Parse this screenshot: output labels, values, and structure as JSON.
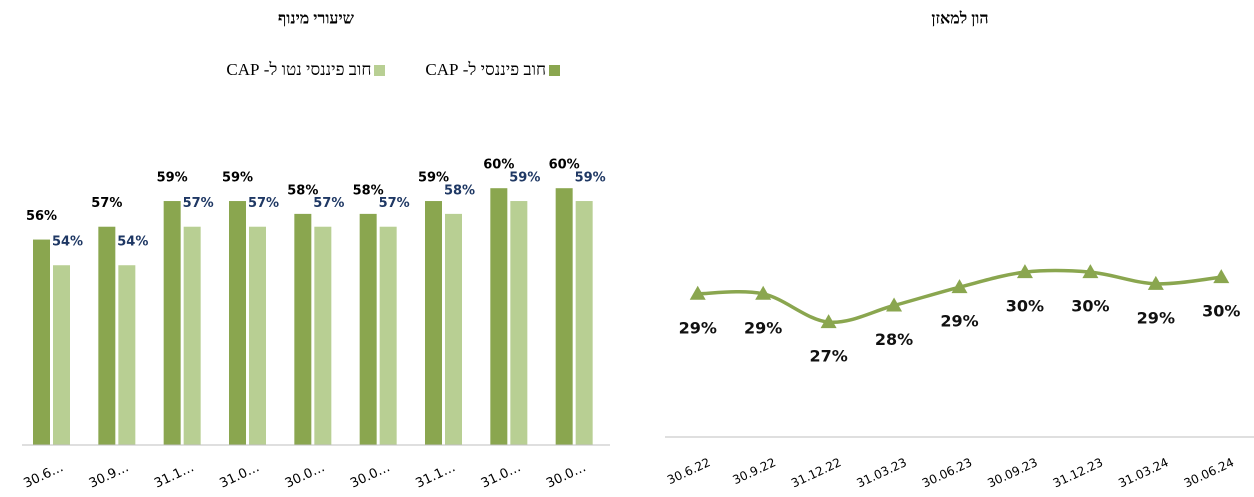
{
  "chart_data": [
    {
      "type": "bar",
      "title": "שיעורי מינוף",
      "categories": [
        "30.6…",
        "30.9…",
        "31.1…",
        "31.0…",
        "30.0…",
        "30.0…",
        "31.1…",
        "31.0…",
        "30.0…"
      ],
      "series": [
        {
          "name": "חוב פיננסי ל- CAP",
          "color": "#8aa64f",
          "label_color": "#000000",
          "values": [
            56,
            57,
            59,
            59,
            58,
            58,
            59,
            60,
            60
          ],
          "value_labels": [
            "56%",
            "57%",
            "59%",
            "59%",
            "58%",
            "58%",
            "59%",
            "60%",
            "60%"
          ]
        },
        {
          "name": "חוב פיננסי נטו ל- CAP",
          "color": "#b8cf93",
          "label_color": "#1f3864",
          "values": [
            54,
            54,
            57,
            57,
            57,
            57,
            58,
            59,
            59
          ],
          "value_labels": [
            "54%",
            "54%",
            "57%",
            "57%",
            "57%",
            "57%",
            "58%",
            "59%",
            "59%"
          ]
        }
      ],
      "ylim": [
        40,
        65
      ],
      "legend": "top"
    },
    {
      "type": "line",
      "title": "הון למאזן",
      "categories": [
        "30.6.22",
        "30.9.22",
        "31.12.22",
        "31.03.23",
        "30.06.23",
        "30.09.23",
        "31.12.23",
        "31.03.24",
        "30.06.24"
      ],
      "values": [
        28.6,
        28.6,
        26.9,
        27.9,
        29.0,
        29.9,
        29.9,
        29.2,
        29.6
      ],
      "value_labels": [
        "29%",
        "29%",
        "27%",
        "28%",
        "29%",
        "30%",
        "30%",
        "29%",
        "30%"
      ],
      "color": "#8aa64f",
      "ylim": [
        20,
        40
      ],
      "smooth": true,
      "marker": "triangle"
    }
  ]
}
